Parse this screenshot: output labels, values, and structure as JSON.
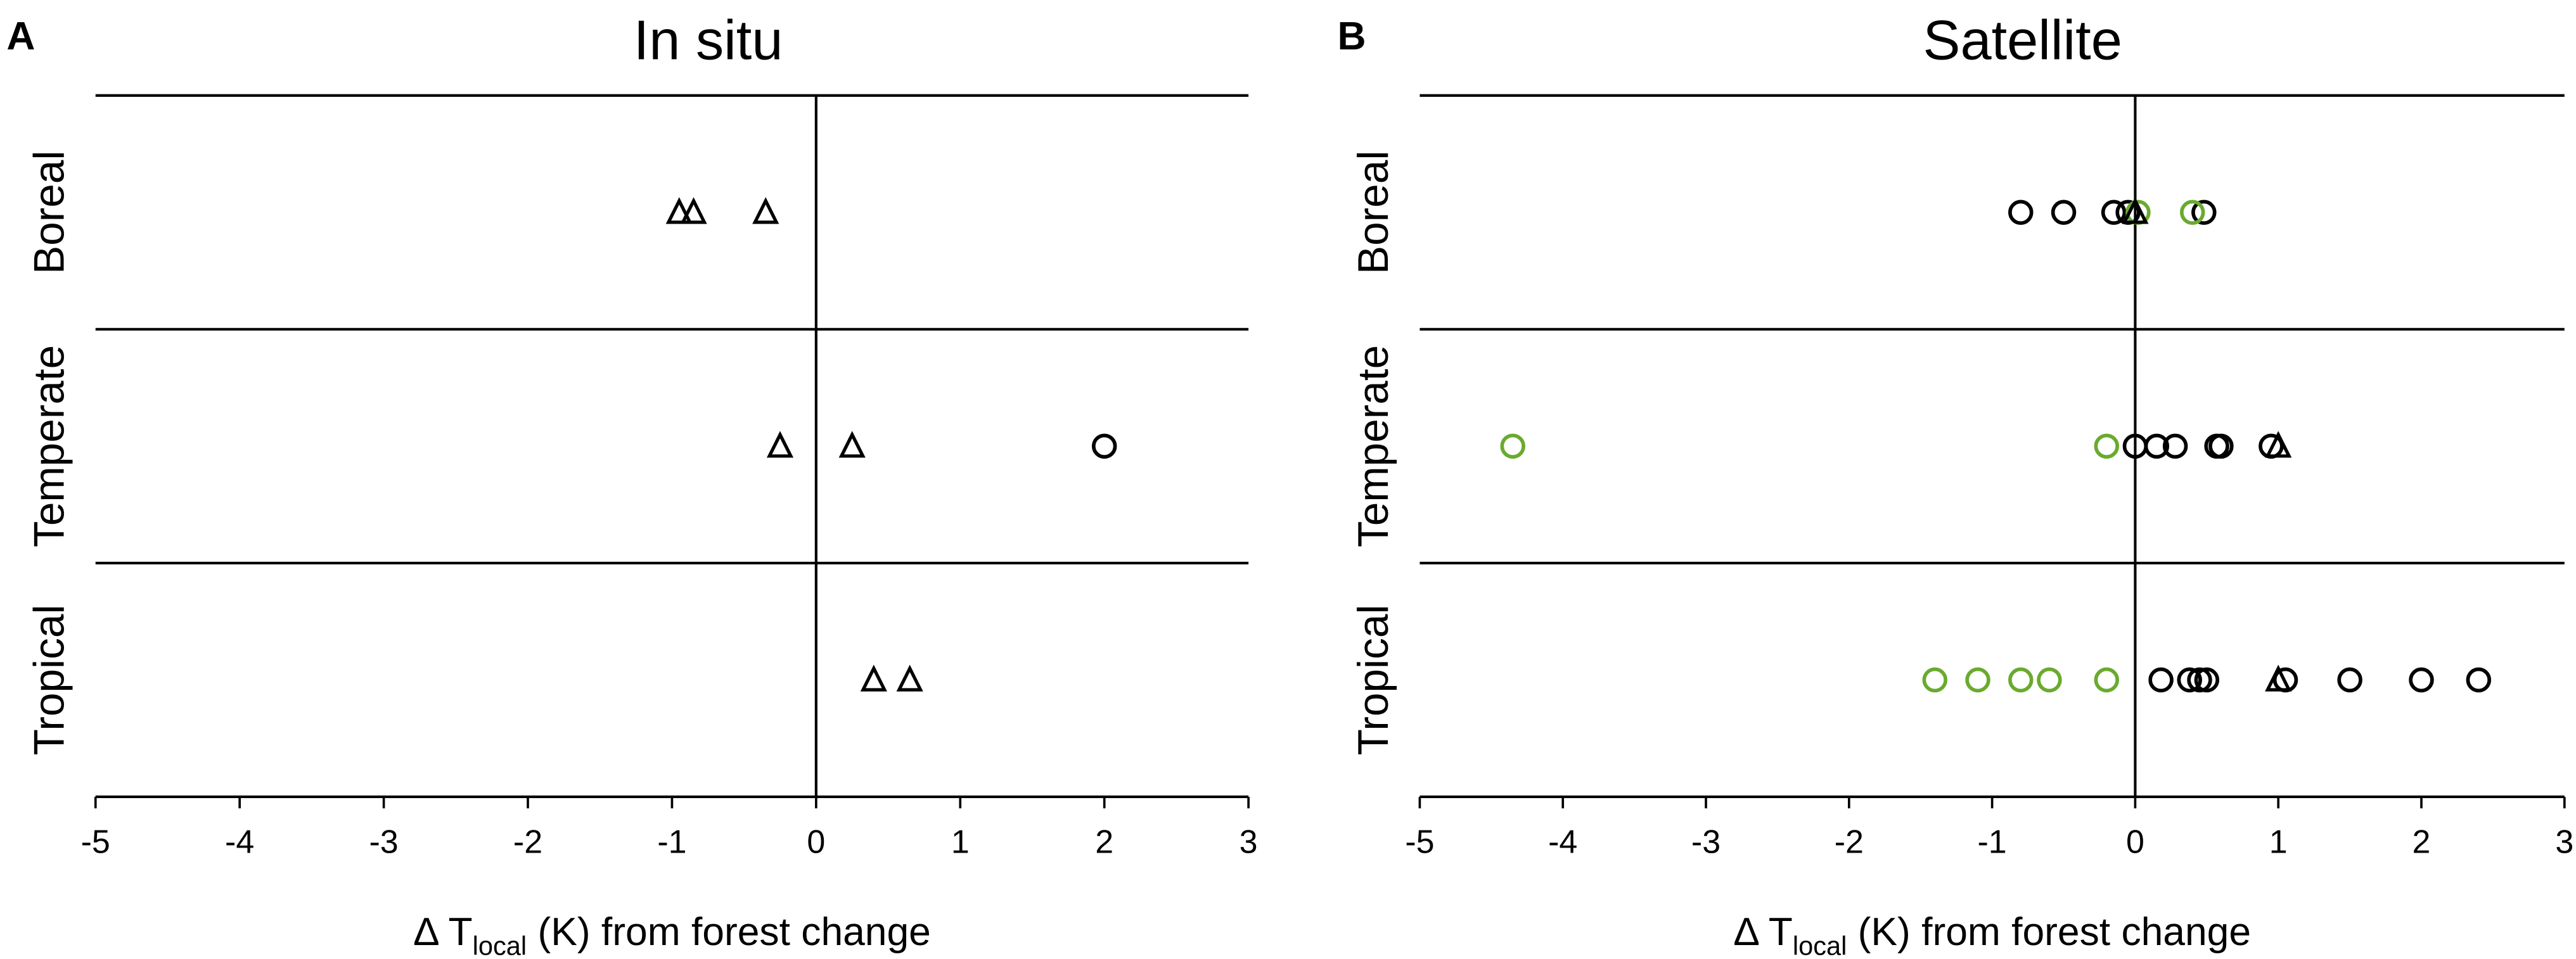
{
  "chart_data": [
    {
      "type": "scatter",
      "panel_letter": "A",
      "title": "In situ",
      "xlabel_main": "Δ T",
      "xlabel_sub": "local",
      "xlabel_rest": " (K) from forest change",
      "xlim": [
        -5,
        3
      ],
      "xticks": [
        "-5",
        "-4",
        "-3",
        "-2",
        "-1",
        "0",
        "1",
        "2",
        "3"
      ],
      "rows": [
        "Boreal",
        "Temperate",
        "Tropical"
      ],
      "grid": false,
      "series": [
        {
          "marker": "triangle",
          "color": "#000000",
          "points": [
            {
              "row": "Boreal",
              "x": -0.95
            },
            {
              "row": "Boreal",
              "x": -0.85
            },
            {
              "row": "Boreal",
              "x": -0.35
            },
            {
              "row": "Temperate",
              "x": -0.25
            },
            {
              "row": "Temperate",
              "x": 0.25
            },
            {
              "row": "Tropical",
              "x": 0.4
            },
            {
              "row": "Tropical",
              "x": 0.65
            }
          ]
        },
        {
          "marker": "circle",
          "color": "#000000",
          "points": [
            {
              "row": "Temperate",
              "x": 2.0
            }
          ]
        }
      ]
    },
    {
      "type": "scatter",
      "panel_letter": "B",
      "title": "Satellite",
      "xlabel_main": "Δ T",
      "xlabel_sub": "local",
      "xlabel_rest": " (K) from forest change",
      "xlim": [
        -5,
        3
      ],
      "xticks": [
        "-5",
        "-4",
        "-3",
        "-2",
        "-1",
        "0",
        "1",
        "2",
        "3"
      ],
      "rows": [
        "Boreal",
        "Temperate",
        "Tropical"
      ],
      "grid": false,
      "series": [
        {
          "marker": "circle",
          "color": "#000000",
          "points": [
            {
              "row": "Boreal",
              "x": -0.8
            },
            {
              "row": "Boreal",
              "x": -0.5
            },
            {
              "row": "Boreal",
              "x": -0.15
            },
            {
              "row": "Boreal",
              "x": -0.05
            },
            {
              "row": "Boreal",
              "x": 0.48
            },
            {
              "row": "Temperate",
              "x": 0.0
            },
            {
              "row": "Temperate",
              "x": 0.15
            },
            {
              "row": "Temperate",
              "x": 0.28
            },
            {
              "row": "Temperate",
              "x": 0.57
            },
            {
              "row": "Temperate",
              "x": 0.6
            },
            {
              "row": "Temperate",
              "x": 0.95
            },
            {
              "row": "Tropical",
              "x": 0.18
            },
            {
              "row": "Tropical",
              "x": 0.38
            },
            {
              "row": "Tropical",
              "x": 0.45
            },
            {
              "row": "Tropical",
              "x": 0.5
            },
            {
              "row": "Tropical",
              "x": 1.05
            },
            {
              "row": "Tropical",
              "x": 1.5
            },
            {
              "row": "Tropical",
              "x": 2.0
            },
            {
              "row": "Tropical",
              "x": 2.4
            }
          ]
        },
        {
          "marker": "circle",
          "color": "#6aaa2e",
          "points": [
            {
              "row": "Boreal",
              "x": 0.02
            },
            {
              "row": "Boreal",
              "x": 0.4
            },
            {
              "row": "Temperate",
              "x": -4.35
            },
            {
              "row": "Temperate",
              "x": -0.2
            },
            {
              "row": "Tropical",
              "x": -1.4
            },
            {
              "row": "Tropical",
              "x": -1.1
            },
            {
              "row": "Tropical",
              "x": -0.8
            },
            {
              "row": "Tropical",
              "x": -0.6
            },
            {
              "row": "Tropical",
              "x": -0.2
            }
          ]
        },
        {
          "marker": "triangle",
          "color": "#000000",
          "points": [
            {
              "row": "Boreal",
              "x": 0.0
            },
            {
              "row": "Temperate",
              "x": 1.0
            },
            {
              "row": "Tropical",
              "x": 1.0
            }
          ]
        }
      ]
    }
  ]
}
